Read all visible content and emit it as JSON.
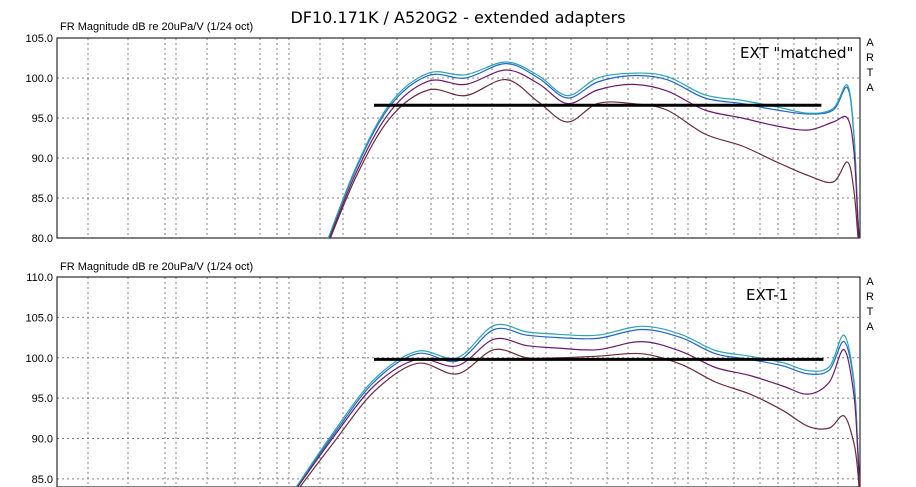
{
  "title": "DF10.171K / A520G2 - extended adapters",
  "colors": {
    "blue": "#1f64c8",
    "teal": "#2aa4b0",
    "purple": "#6a1a6a",
    "maroon": "#6b2a3a",
    "reference": "#000000",
    "grid": "#808080"
  },
  "chart_data": [
    {
      "type": "line",
      "name": "EXT \"matched\"",
      "ylabel": "FR Magnitude dB re 20uPa/V (1/24 oct)",
      "side_label": "ARTA",
      "ylim": [
        80,
        105
      ],
      "yticks": [
        "105.0",
        "100.0",
        "95.0",
        "90.0",
        "85.0",
        "80.0"
      ],
      "xscale": "log",
      "xlim": [
        1,
        800
      ],
      "reference_line": {
        "x": [
          14,
          580
        ],
        "y": 96.6
      },
      "series": [
        {
          "color": "blue",
          "x": [
            9,
            12,
            16,
            22,
            30,
            42,
            55,
            70,
            90,
            120,
            160,
            220,
            300,
            400,
            520,
            640,
            720,
            760,
            785,
            800
          ],
          "y": [
            77.5,
            88.5,
            96.5,
            100.3,
            100.0,
            101.8,
            100.0,
            97.5,
            99.5,
            100.3,
            99.8,
            97.5,
            96.8,
            96.0,
            95.5,
            96.0,
            98.8,
            93.0,
            83.0,
            78.0
          ]
        },
        {
          "color": "teal",
          "x": [
            9,
            12,
            16,
            22,
            30,
            42,
            55,
            70,
            90,
            120,
            160,
            220,
            300,
            400,
            520,
            640,
            720,
            760,
            785,
            800
          ],
          "y": [
            77.5,
            88.7,
            96.8,
            100.6,
            100.4,
            102.0,
            100.3,
            97.8,
            100.0,
            100.6,
            100.2,
            97.9,
            97.2,
            96.4,
            95.6,
            96.2,
            99.1,
            93.2,
            83.0,
            78.0
          ]
        },
        {
          "color": "purple",
          "x": [
            9,
            12,
            16,
            22,
            30,
            42,
            55,
            70,
            90,
            120,
            160,
            220,
            300,
            400,
            520,
            640,
            720,
            760,
            785,
            800
          ],
          "y": [
            77.2,
            88.0,
            95.8,
            99.6,
            99.2,
            101.0,
            99.3,
            96.8,
            98.5,
            99.2,
            98.4,
            96.0,
            95.0,
            94.0,
            93.5,
            94.5,
            95.0,
            91.0,
            82.5,
            77.5
          ]
        },
        {
          "color": "maroon",
          "x": [
            9,
            12,
            16,
            22,
            30,
            42,
            55,
            70,
            90,
            120,
            160,
            220,
            300,
            400,
            520,
            640,
            720,
            760,
            785,
            800
          ],
          "y": [
            77.0,
            87.5,
            95.0,
            98.5,
            97.8,
            99.8,
            97.0,
            94.5,
            96.8,
            96.8,
            96.0,
            93.0,
            91.5,
            89.5,
            87.8,
            87.0,
            89.5,
            86.0,
            80.5,
            77.0
          ]
        }
      ]
    },
    {
      "type": "line",
      "name": "EXT-1",
      "ylabel": "FR Magnitude dB re 20uPa/V (1/24 oct)",
      "side_label": "ARTA",
      "ylim": [
        84,
        110
      ],
      "yticks": [
        "110.0",
        "105.0",
        "100.0",
        "95.0",
        "90.0",
        "85.0"
      ],
      "xscale": "log",
      "xlim": [
        1,
        800
      ],
      "reference_line": {
        "x": [
          14,
          590
        ],
        "y": 99.8
      },
      "series": [
        {
          "color": "blue",
          "x": [
            7,
            10,
            14,
            20,
            28,
            38,
            50,
            65,
            90,
            130,
            180,
            240,
            320,
            420,
            520,
            620,
            700,
            760,
            785,
            800
          ],
          "y": [
            83.0,
            90.5,
            97.0,
            100.5,
            99.6,
            103.5,
            102.8,
            102.5,
            102.4,
            103.5,
            102.5,
            100.5,
            99.8,
            99.0,
            98.0,
            98.5,
            102.0,
            97.0,
            89.0,
            83.0
          ]
        },
        {
          "color": "teal",
          "x": [
            7,
            10,
            14,
            20,
            28,
            38,
            50,
            65,
            90,
            130,
            180,
            240,
            320,
            420,
            520,
            620,
            700,
            760,
            785,
            800
          ],
          "y": [
            83.0,
            90.8,
            97.3,
            100.8,
            100.0,
            104.0,
            103.2,
            102.9,
            102.8,
            103.9,
            102.9,
            100.9,
            100.2,
            99.4,
            98.4,
            98.9,
            102.8,
            97.3,
            89.0,
            83.0
          ]
        },
        {
          "color": "purple",
          "x": [
            7,
            10,
            14,
            20,
            28,
            38,
            50,
            65,
            90,
            130,
            180,
            240,
            320,
            420,
            520,
            620,
            700,
            760,
            785,
            800
          ],
          "y": [
            82.8,
            90.2,
            96.5,
            99.8,
            99.0,
            102.3,
            101.5,
            101.2,
            101.0,
            102.0,
            100.8,
            98.8,
            97.8,
            96.5,
            95.5,
            97.0,
            101.0,
            95.5,
            88.5,
            82.5
          ]
        },
        {
          "color": "maroon",
          "x": [
            7,
            10,
            14,
            20,
            28,
            38,
            50,
            65,
            90,
            130,
            180,
            240,
            320,
            420,
            520,
            620,
            700,
            760,
            785,
            800
          ],
          "y": [
            82.5,
            89.5,
            95.8,
            99.3,
            98.0,
            101.0,
            100.0,
            100.0,
            100.2,
            100.5,
            99.2,
            97.0,
            95.5,
            93.5,
            91.5,
            91.3,
            92.8,
            89.5,
            86.0,
            82.0
          ]
        }
      ]
    }
  ]
}
